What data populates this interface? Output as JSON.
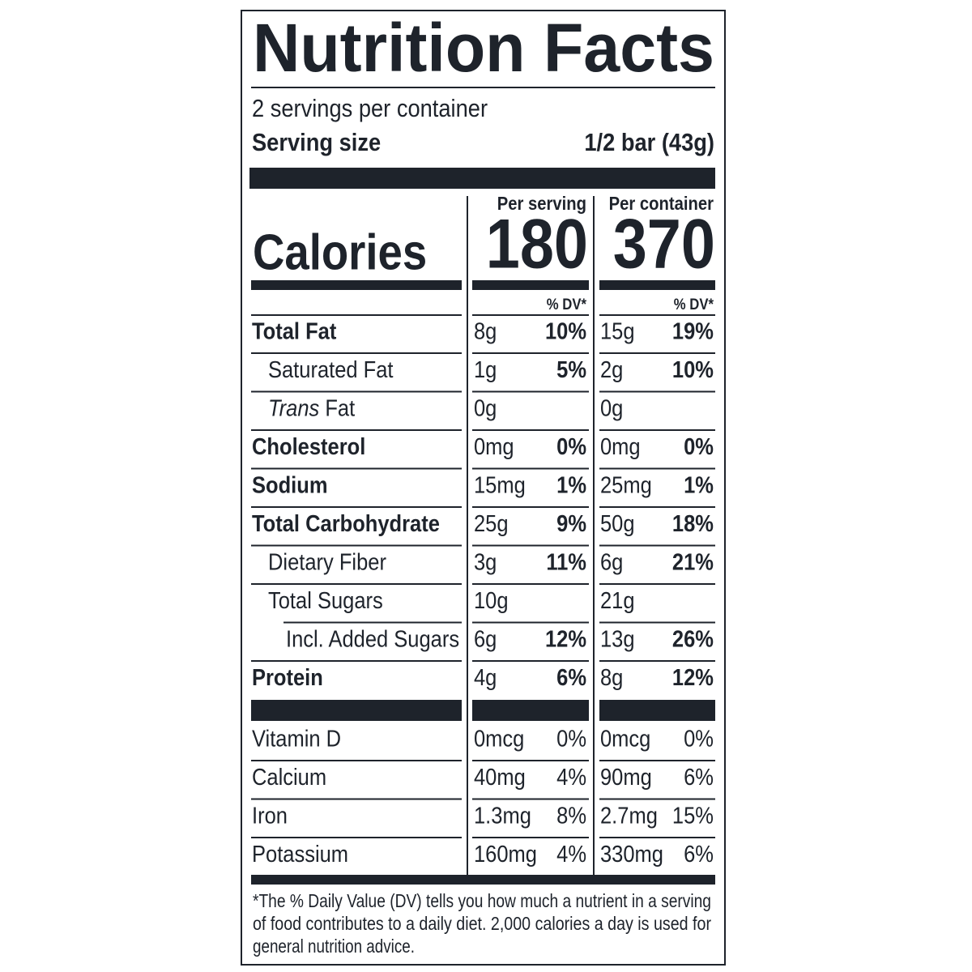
{
  "header": {
    "title": "Nutrition Facts",
    "servings": "2 servings per container",
    "serving_size_label": "Serving size",
    "serving_size": "1/2 bar (43g)"
  },
  "columns": [
    "Per serving",
    "Per container"
  ],
  "calories": {
    "label": "Calories",
    "values": [
      "180",
      "370"
    ]
  },
  "dv_header": [
    "% DV*",
    "% DV*"
  ],
  "nutrients": [
    {
      "name": "Total Fat",
      "bold": true,
      "indent": 0,
      "values": [
        [
          "8g",
          "10%"
        ],
        [
          "15g",
          "19%"
        ]
      ]
    },
    {
      "name": "Saturated Fat",
      "bold": false,
      "indent": 1,
      "values": [
        [
          "1g",
          "5%"
        ],
        [
          "2g",
          "10%"
        ]
      ]
    },
    {
      "name_italic": "Trans",
      "name": "Fat",
      "bold": false,
      "indent": 1,
      "values": [
        [
          "0g"
        ],
        [
          "0g"
        ]
      ]
    },
    {
      "name": "Cholesterol",
      "bold": true,
      "indent": 0,
      "values": [
        [
          "0mg",
          "0%"
        ],
        [
          "0mg",
          "0%"
        ]
      ]
    },
    {
      "name": "Sodium",
      "bold": true,
      "indent": 0,
      "values": [
        [
          "15mg",
          "1%"
        ],
        [
          "25mg",
          "1%"
        ]
      ]
    },
    {
      "name": "Total Carbohydrate",
      "bold": true,
      "indent": 0,
      "values": [
        [
          "25g",
          "9%"
        ],
        [
          "50g",
          "18%"
        ]
      ]
    },
    {
      "name": "Dietary Fiber",
      "bold": false,
      "indent": 1,
      "values": [
        [
          "3g",
          "11%"
        ],
        [
          "6g",
          "21%"
        ]
      ]
    },
    {
      "name": "Total Sugars",
      "bold": false,
      "indent": 1,
      "values": [
        [
          "10g"
        ],
        [
          "21g"
        ]
      ]
    },
    {
      "name": "Incl. Added Sugars",
      "bold": false,
      "indent": 2,
      "values": [
        [
          "6g",
          "12%"
        ],
        [
          "13g",
          "26%"
        ]
      ]
    },
    {
      "name": "Protein",
      "bold": true,
      "indent": 0,
      "values": [
        [
          "4g",
          "6%"
        ],
        [
          "8g",
          "12%"
        ]
      ]
    }
  ],
  "vitamins": [
    {
      "name": "Vitamin D",
      "values": [
        [
          "0mcg",
          "0%"
        ],
        [
          "0mcg",
          "0%"
        ]
      ]
    },
    {
      "name": "Calcium",
      "values": [
        [
          "40mg",
          "4%"
        ],
        [
          "90mg",
          "6%"
        ]
      ]
    },
    {
      "name": "Iron",
      "values": [
        [
          "1.3mg",
          "8%"
        ],
        [
          "2.7mg",
          "15%"
        ]
      ]
    },
    {
      "name": "Potassium",
      "values": [
        [
          "160mg",
          "4%"
        ],
        [
          "330mg",
          "6%"
        ]
      ]
    }
  ],
  "footnote": [
    "*The % Daily Value (DV) tells you how much a nutrient in a serving",
    "of food contributes to a daily diet. 2,000 calories a day is used for",
    "general nutrition advice."
  ]
}
